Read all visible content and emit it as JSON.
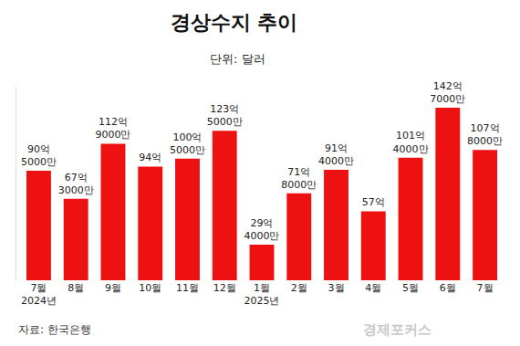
{
  "chart_data": {
    "type": "bar",
    "title": "경상수지 추이",
    "subtitle": "단위: 달러",
    "source": "자료: 한국은행",
    "watermark": "경제포커스",
    "categories": [
      "7월\n2024년",
      "8월",
      "9월",
      "10월",
      "11월",
      "12월",
      "1월\n2025년",
      "2월",
      "3월",
      "4월",
      "5월",
      "6월",
      "7월"
    ],
    "values": [
      9050000000,
      6730000000,
      11290000000,
      9400000000,
      10050000000,
      12350000000,
      2940000000,
      7180000000,
      9140000000,
      5700000000,
      10140000000,
      14270000000,
      10780000000
    ],
    "value_labels": [
      "90억\n5000만",
      "67억\n3000만",
      "112억\n9000만",
      "94억",
      "100억\n5000만",
      "123억\n5000만",
      "29억\n4000만",
      "71억\n8000만",
      "91억\n4000만",
      "57억",
      "101억\n4000만",
      "142억\n7000만",
      "107억\n8000만"
    ],
    "color": "#ee1111",
    "ylim": [
      0,
      16000000000
    ],
    "data_labels": true,
    "tick_labels": "x",
    "grid": false
  }
}
